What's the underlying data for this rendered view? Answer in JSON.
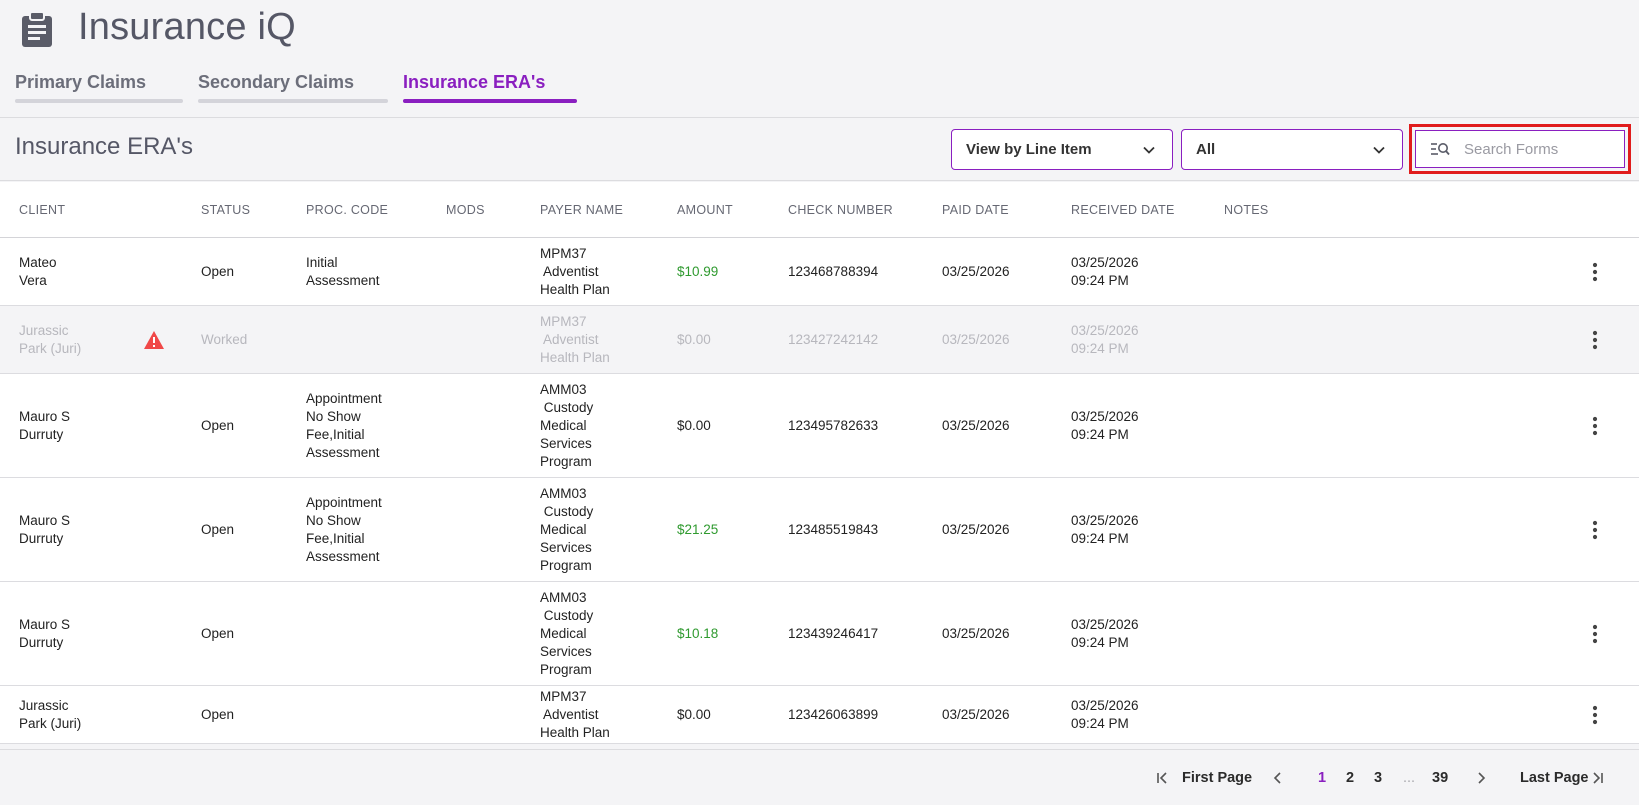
{
  "app": {
    "title": "Insurance iQ",
    "icon": "clipboard-icon"
  },
  "tabs": [
    {
      "label": "Primary Claims",
      "active": false
    },
    {
      "label": "Secondary Claims",
      "active": false
    },
    {
      "label": "Insurance ERA's",
      "active": true
    }
  ],
  "page": {
    "title": "Insurance ERA's"
  },
  "filters": {
    "view": {
      "value": "View by Line Item"
    },
    "status": {
      "value": "All"
    },
    "search": {
      "placeholder": "Search Forms",
      "value": ""
    }
  },
  "table": {
    "columns": [
      "CLIENT",
      "STATUS",
      "PROC. CODE",
      "MODS",
      "PAYER NAME",
      "AMOUNT",
      "CHECK NUMBER",
      "PAID DATE",
      "RECEIVED DATE",
      "NOTES"
    ],
    "rows": [
      {
        "client": [
          "Mateo",
          "Vera"
        ],
        "warning": false,
        "status": "Open",
        "proc_code": [
          "Initial",
          "Assessment"
        ],
        "mods": "",
        "payer": [
          "MPM37",
          " Adventist",
          "Health Plan"
        ],
        "amount": "$10.99",
        "amount_positive": true,
        "check_number": "123468788394",
        "paid_date": "03/25/2026",
        "received": [
          "03/25/2026",
          "09:24 PM"
        ],
        "notes": "",
        "disabled": false
      },
      {
        "client": [
          "Jurassic",
          "Park (Juri)"
        ],
        "warning": true,
        "status": "Worked",
        "proc_code": [],
        "mods": "",
        "payer": [
          "MPM37",
          " Adventist",
          "Health Plan"
        ],
        "amount": "$0.00",
        "amount_positive": false,
        "check_number": "123427242142",
        "paid_date": "03/25/2026",
        "received": [
          "03/25/2026",
          "09:24 PM"
        ],
        "notes": "",
        "disabled": true
      },
      {
        "client": [
          "Mauro S",
          "Durruty"
        ],
        "warning": false,
        "status": "Open",
        "proc_code": [
          "Appointment",
          "No Show",
          "Fee,Initial",
          "Assessment"
        ],
        "mods": "",
        "payer": [
          "AMM03",
          " Custody",
          "Medical",
          "Services",
          "Program"
        ],
        "amount": "$0.00",
        "amount_positive": false,
        "check_number": "123495782633",
        "paid_date": "03/25/2026",
        "received": [
          "03/25/2026",
          "09:24 PM"
        ],
        "notes": "",
        "disabled": false
      },
      {
        "client": [
          "Mauro S",
          "Durruty"
        ],
        "warning": false,
        "status": "Open",
        "proc_code": [
          "Appointment",
          "No Show",
          "Fee,Initial",
          "Assessment"
        ],
        "mods": "",
        "payer": [
          "AMM03",
          " Custody",
          "Medical",
          "Services",
          "Program"
        ],
        "amount": "$21.25",
        "amount_positive": true,
        "check_number": "123485519843",
        "paid_date": "03/25/2026",
        "received": [
          "03/25/2026",
          "09:24 PM"
        ],
        "notes": "",
        "disabled": false
      },
      {
        "client": [
          "Mauro S",
          "Durruty"
        ],
        "warning": false,
        "status": "Open",
        "proc_code": [],
        "mods": "",
        "payer": [
          "AMM03",
          " Custody",
          "Medical",
          "Services",
          "Program"
        ],
        "amount": "$10.18",
        "amount_positive": true,
        "check_number": "123439246417",
        "paid_date": "03/25/2026",
        "received": [
          "03/25/2026",
          "09:24 PM"
        ],
        "notes": "",
        "disabled": false
      },
      {
        "client": [
          "Jurassic",
          "Park (Juri)"
        ],
        "warning": false,
        "status": "Open",
        "proc_code": [],
        "mods": "",
        "payer": [
          "MPM37",
          " Adventist",
          "Health Plan"
        ],
        "amount": "$0.00",
        "amount_positive": false,
        "check_number": "123426063899",
        "paid_date": "03/25/2026",
        "received": [
          "03/25/2026",
          "09:24 PM"
        ],
        "notes": "",
        "disabled": false
      }
    ]
  },
  "pagination": {
    "first_label": "First Page",
    "last_label": "Last Page",
    "pages": [
      "1",
      "2",
      "3"
    ],
    "ellipsis": "...",
    "last_page": "39",
    "current": "1"
  },
  "colors": {
    "accent": "#8a1fc0",
    "positive": "#2f9a2f",
    "warning": "#f04848",
    "highlight": "#e01c1c"
  }
}
